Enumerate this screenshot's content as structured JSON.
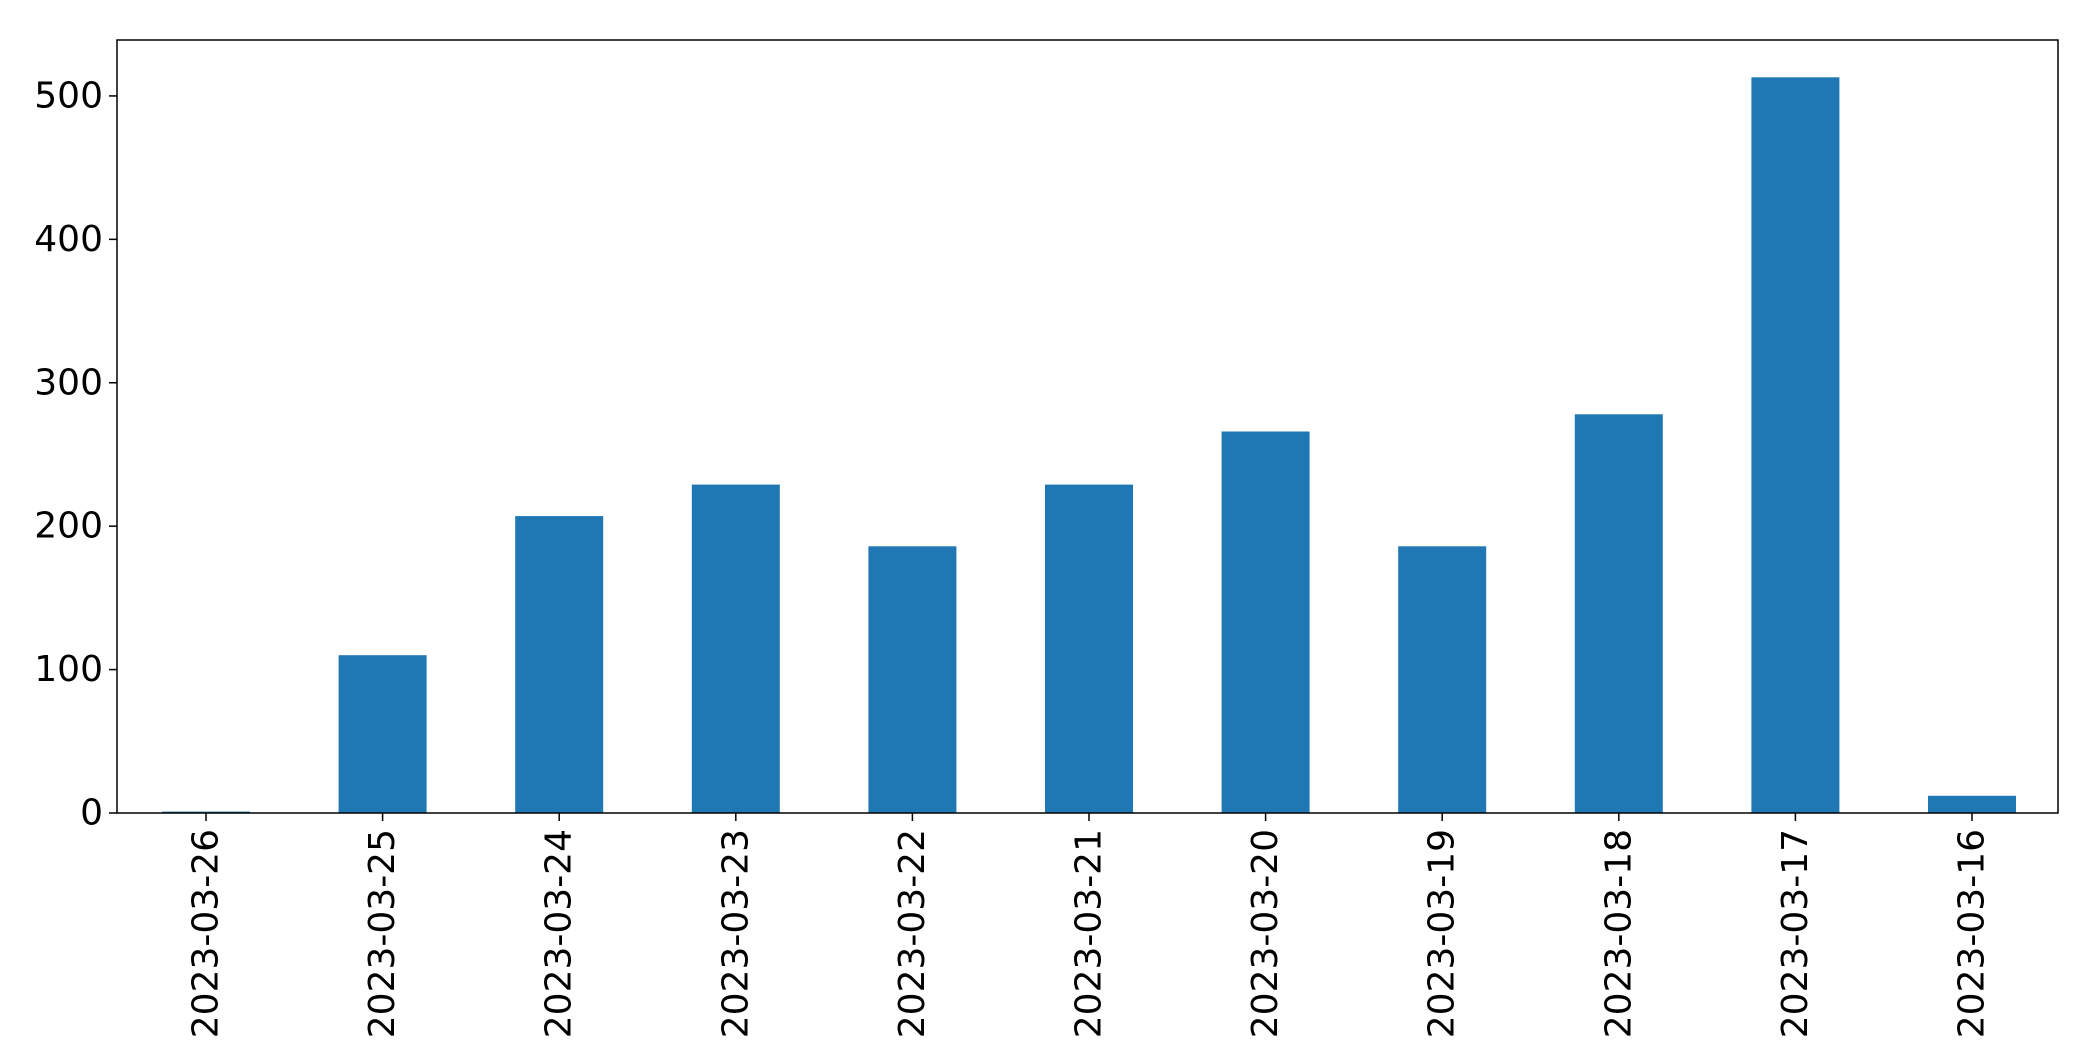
{
  "chart_data": {
    "type": "bar",
    "title": "",
    "xlabel": "",
    "ylabel": "",
    "categories": [
      "2023-03-26",
      "2023-03-25",
      "2023-03-24",
      "2023-03-23",
      "2023-03-22",
      "2023-03-21",
      "2023-03-20",
      "2023-03-19",
      "2023-03-18",
      "2023-03-17",
      "2023-03-16"
    ],
    "values": [
      1,
      110,
      207,
      229,
      186,
      229,
      266,
      186,
      278,
      513,
      12
    ],
    "ylim": [
      0,
      539
    ],
    "yticks": [
      "0",
      "100",
      "200",
      "300",
      "400",
      "500"
    ],
    "grid": false,
    "legend": "none",
    "bar_color": "#1f77b4"
  }
}
